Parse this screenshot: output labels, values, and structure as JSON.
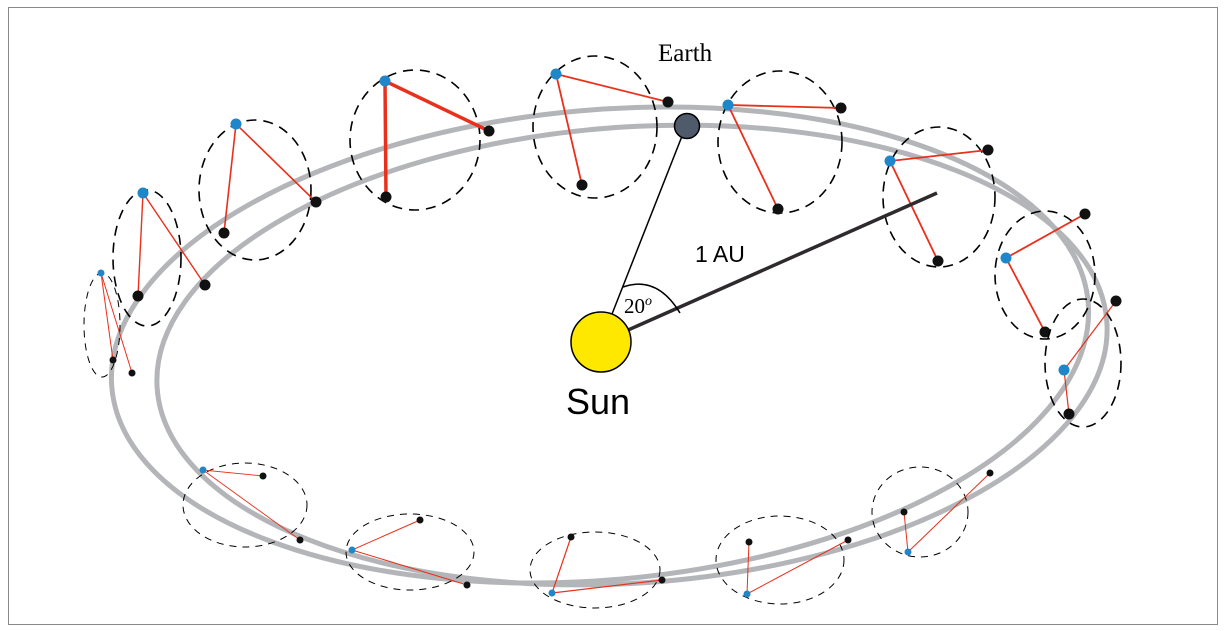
{
  "labels": {
    "earth": "Earth",
    "distance": "1 AU",
    "angle": "20",
    "angle_unit": "o",
    "sun": "Sun"
  },
  "colors": {
    "orbit": "#b3b5b8",
    "triangle": "#e8301c",
    "detector_a": "#1f86c9",
    "detector_b": "#111111",
    "earth": "#4f5a6b",
    "sun": "#ffe800",
    "radius_line": "#2e2a2e"
  }
}
